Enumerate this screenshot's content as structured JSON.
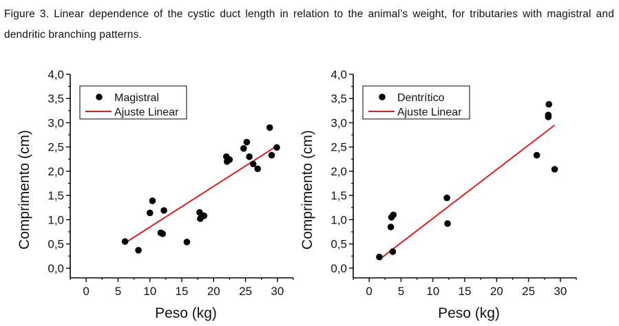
{
  "caption": {
    "lead": "Figure 3.",
    "text": "Linear dependence of the cystic duct length in relation to the animal’s weight, for tributaries with magistral and dendritic branching patterns."
  },
  "colors": {
    "points": "#000000",
    "fit": "#e41a1c"
  },
  "chart_data": [
    {
      "type": "scatter",
      "xlabel": "Peso (kg)",
      "ylabel": "Comprimento (cm)",
      "xlim": [
        -2.5,
        32.5
      ],
      "ylim": [
        -0.2,
        4.0
      ],
      "xticks": [
        0,
        5,
        10,
        15,
        20,
        25,
        30
      ],
      "xtick_labels": [
        "0",
        "5",
        "10",
        "15",
        "20",
        "25",
        "30"
      ],
      "yticks": [
        0,
        0.5,
        1,
        1.5,
        2,
        2.5,
        3,
        3.5,
        4
      ],
      "ytick_labels": [
        "0,0",
        "0,5",
        "1,0",
        "1,5",
        "2,0",
        "2,5",
        "3,0",
        "3,5",
        "4,0"
      ],
      "legend": {
        "position": "top-left",
        "points_label": "Magistral",
        "fit_label": "Ajuste Linear"
      },
      "series": [
        {
          "name": "Magistral",
          "kind": "points",
          "x": [
            6.1,
            8.2,
            10.0,
            10.4,
            11.7,
            12.0,
            12.2,
            15.8,
            17.8,
            17.9,
            18.5,
            22.0,
            22.1,
            22.5,
            24.7,
            25.2,
            25.6,
            26.2,
            26.9,
            28.8,
            29.1,
            29.9
          ],
          "y": [
            0.55,
            0.37,
            1.14,
            1.39,
            0.73,
            0.71,
            1.19,
            0.54,
            1.15,
            1.02,
            1.08,
            2.3,
            2.2,
            2.24,
            2.47,
            2.6,
            2.3,
            2.15,
            2.05,
            2.9,
            2.33,
            2.49
          ]
        },
        {
          "name": "Ajuste Linear",
          "kind": "line",
          "x": [
            6.1,
            29.9
          ],
          "y": [
            0.52,
            2.52
          ]
        }
      ]
    },
    {
      "type": "scatter",
      "xlabel": "Peso (kg)",
      "ylabel": "Comprimento (cm)",
      "xlim": [
        -2.5,
        32.5
      ],
      "ylim": [
        -0.2,
        4.0
      ],
      "xticks": [
        0,
        5,
        10,
        15,
        20,
        25,
        30
      ],
      "xtick_labels": [
        "0",
        "5",
        "10",
        "15",
        "20",
        "25",
        "30"
      ],
      "yticks": [
        0,
        0.5,
        1,
        1.5,
        2,
        2.5,
        3,
        3.5,
        4
      ],
      "ytick_labels": [
        "0,0",
        "0,5",
        "1,0",
        "1,5",
        "2,0",
        "2,5",
        "3,0",
        "3,5",
        "4,0"
      ],
      "legend": {
        "position": "top-left",
        "points_label": "Dentrítico",
        "fit_label": "Ajuste Linear"
      },
      "series": [
        {
          "name": "Dentrítico",
          "kind": "points",
          "x": [
            1.6,
            3.4,
            3.5,
            3.7,
            3.8,
            12.2,
            12.3,
            26.3,
            28.1,
            28.1,
            28.2,
            29.1
          ],
          "y": [
            0.23,
            0.85,
            1.05,
            0.34,
            1.1,
            1.45,
            0.92,
            2.33,
            3.12,
            3.16,
            3.38,
            2.04
          ]
        },
        {
          "name": "Ajuste Linear",
          "kind": "line",
          "x": [
            1.6,
            29.1
          ],
          "y": [
            0.18,
            2.95
          ]
        }
      ]
    }
  ]
}
